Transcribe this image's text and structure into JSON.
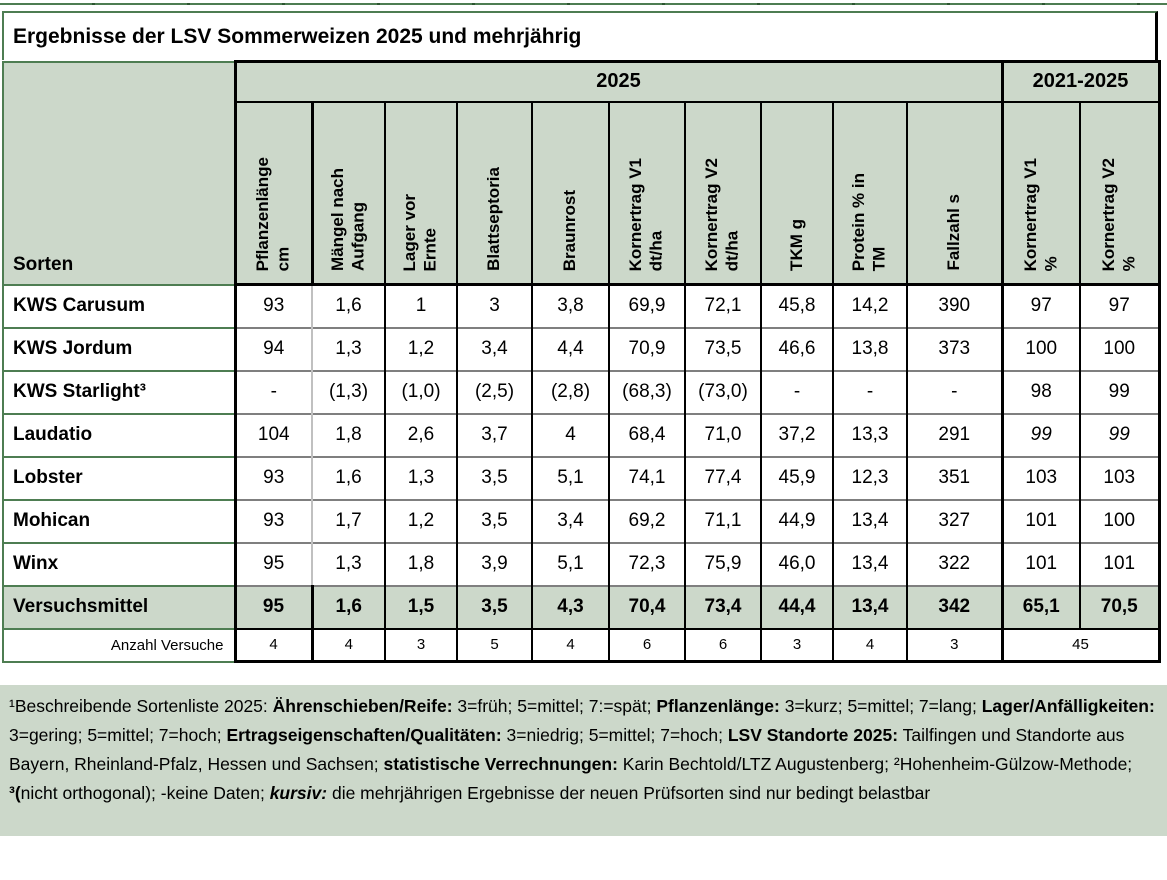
{
  "title": "Ergebnisse der LSV Sommerweizen 2025 und mehrjährig",
  "table": {
    "sorten_label": "Sorten",
    "year_groups": [
      {
        "label": "2025",
        "span": 10
      },
      {
        "label": "2021-2025",
        "span": 2
      }
    ],
    "columns": [
      "Pflanzenlänge\ncm",
      "Mängel nach\nAufgang",
      "Lager vor\nErnte",
      "Blattseptoria",
      "Braunrost",
      "Kornertrag V1\ndt/ha",
      "Kornertrag V2\ndt/ha",
      "TKM g",
      "Protein % in\nTM",
      "Fallzahl s",
      "Kornertrag V1\n%",
      "Kornertrag V2\n%"
    ],
    "rows": [
      {
        "name": "KWS Carusum",
        "values": [
          "93",
          "1,6",
          "1",
          "3",
          "3,8",
          "69,9",
          "72,1",
          "45,8",
          "14,2",
          "390",
          "97",
          "97"
        ]
      },
      {
        "name": "KWS Jordum",
        "values": [
          "94",
          "1,3",
          "1,2",
          "3,4",
          "4,4",
          "70,9",
          "73,5",
          "46,6",
          "13,8",
          "373",
          "100",
          "100"
        ]
      },
      {
        "name": "KWS Starlight³",
        "values": [
          "-",
          "(1,3)",
          "(1,0)",
          "(2,5)",
          "(2,8)",
          "(68,3)",
          "(73,0)",
          "-",
          "-",
          "-",
          "98",
          "99"
        ]
      },
      {
        "name": "Laudatio",
        "values": [
          "104",
          "1,8",
          "2,6",
          "3,7",
          "4",
          "68,4",
          "71,0",
          "37,2",
          "13,3",
          "291",
          "99",
          "99"
        ],
        "italic_last2": true
      },
      {
        "name": "Lobster",
        "values": [
          "93",
          "1,6",
          "1,3",
          "3,5",
          "5,1",
          "74,1",
          "77,4",
          "45,9",
          "12,3",
          "351",
          "103",
          "103"
        ]
      },
      {
        "name": "Mohican",
        "values": [
          "93",
          "1,7",
          "1,2",
          "3,5",
          "3,4",
          "69,2",
          "71,1",
          "44,9",
          "13,4",
          "327",
          "101",
          "100"
        ]
      },
      {
        "name": "Winx",
        "values": [
          "95",
          "1,3",
          "1,8",
          "3,9",
          "5,1",
          "72,3",
          "75,9",
          "46,0",
          "13,4",
          "322",
          "101",
          "101"
        ]
      }
    ],
    "summary_row": {
      "name": "Versuchsmittel",
      "values": [
        "95",
        "1,6",
        "1,5",
        "3,5",
        "4,3",
        "70,4",
        "73,4",
        "44,4",
        "13,4",
        "342",
        "65,1",
        "70,5"
      ]
    },
    "count_row": {
      "label": "Anzahl Versuche",
      "values": [
        "4",
        "4",
        "3",
        "5",
        "4",
        "6",
        "6",
        "3",
        "4",
        "3"
      ],
      "merged_value": "45"
    }
  },
  "footnote": {
    "segments": [
      {
        "t": "¹Beschreibende Sortenliste 2025: "
      },
      {
        "t": "Ährenschieben/Reife:",
        "b": true
      },
      {
        "t": " 3=früh; 5=mittel; 7:=spät; "
      },
      {
        "t": "Pflanzenlänge:",
        "b": true
      },
      {
        "t": " 3=kurz; 5=mittel; 7=lang; "
      },
      {
        "t": "Lager/Anfälligkeiten:",
        "b": true
      },
      {
        "t": " 3=gering; 5=mittel; 7=hoch; "
      },
      {
        "t": "Ertragseigenschaften/Qualitäten:",
        "b": true
      },
      {
        "t": " 3=niedrig; 5=mittel; 7=hoch; "
      },
      {
        "t": "LSV Standorte 2025:",
        "b": true
      },
      {
        "t": " Tailfingen und Standorte aus Bayern, Rheinland-Pfalz, Hessen und Sachsen; "
      },
      {
        "t": "statistische Verrechnungen:",
        "b": true
      },
      {
        "t": " Karin Bechtold/LTZ Augustenberg; ²Hohenheim-Gülzow-Methode; "
      },
      {
        "t": "³(",
        "b": true
      },
      {
        "t": "nicht orthogonal); -keine Daten; "
      },
      {
        "t": "kursiv:",
        "b": true,
        "i": true
      },
      {
        "t": " die mehrjährigen Ergebnisse der neuen Prüfsorten sind nur bedingt belastbar"
      }
    ]
  },
  "colors": {
    "header_bg": "#ccd8ca",
    "summary_bg": "#ccd8ca",
    "footnote_bg": "#ccd8ca",
    "border_green": "#4e7d52",
    "grid_gray": "#7f7f7f",
    "border_black": "#000000"
  }
}
